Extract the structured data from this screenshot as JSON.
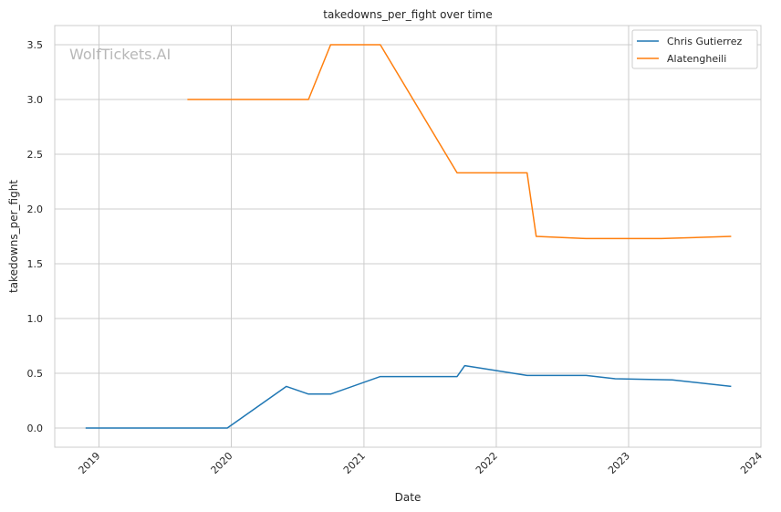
{
  "chart_data": {
    "type": "line",
    "title": "takedowns_per_fight over time",
    "xlabel": "Date",
    "ylabel": "takedowns_per_fight",
    "watermark": "WolfTickets.AI",
    "x_ticks": [
      "2019",
      "2020",
      "2021",
      "2022",
      "2023",
      "2024"
    ],
    "y_ticks": [
      "0.0",
      "0.5",
      "1.0",
      "1.5",
      "2.0",
      "2.5",
      "3.0",
      "3.5"
    ],
    "xlim": [
      "2018-09-01",
      "2024-01-01"
    ],
    "ylim": [
      -0.175,
      3.675
    ],
    "grid": true,
    "legend_position": "top-right",
    "series": [
      {
        "name": "Chris Gutierrez",
        "color": "#1f77b4",
        "points": [
          [
            "2018-11-25",
            0.0
          ],
          [
            "2019-12-21",
            0.0
          ],
          [
            "2020-06-01",
            0.38
          ],
          [
            "2020-08-01",
            0.31
          ],
          [
            "2020-10-01",
            0.31
          ],
          [
            "2021-02-15",
            0.47
          ],
          [
            "2021-09-15",
            0.47
          ],
          [
            "2021-10-06",
            0.57
          ],
          [
            "2022-03-27",
            0.48
          ],
          [
            "2022-09-06",
            0.48
          ],
          [
            "2022-11-25",
            0.45
          ],
          [
            "2023-05-01",
            0.44
          ],
          [
            "2023-10-11",
            0.38
          ]
        ]
      },
      {
        "name": "Alatengheili",
        "color": "#ff7f0e",
        "points": [
          [
            "2019-09-02",
            3.0
          ],
          [
            "2020-08-01",
            3.0
          ],
          [
            "2020-10-01",
            3.5
          ],
          [
            "2021-02-15",
            3.5
          ],
          [
            "2021-09-15",
            2.33
          ],
          [
            "2022-03-27",
            2.33
          ],
          [
            "2022-04-21",
            1.75
          ],
          [
            "2022-09-06",
            1.73
          ],
          [
            "2023-04-01",
            1.73
          ],
          [
            "2023-10-11",
            1.75
          ]
        ]
      }
    ]
  }
}
